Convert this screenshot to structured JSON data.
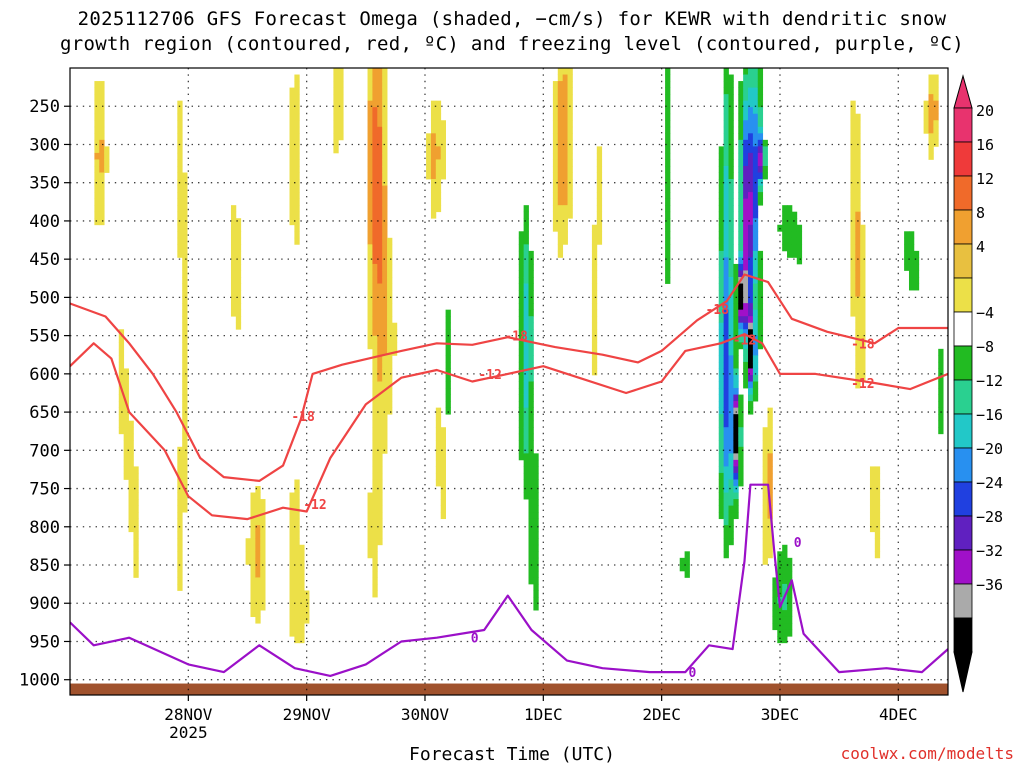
{
  "chart_data": {
    "type": "heatmap",
    "title_line1": "2025112706 GFS Forecast Omega (shaded, −cm/s) for KEWR with dendritic snow",
    "title_line2": "growth region (contoured, red, ºC) and freezing level (contoured, purple, ºC)",
    "xlabel": "Forecast Time (UTC)",
    "credit": "coolwx.com/modelts",
    "x_ticks": [
      {
        "label": "28NOV",
        "sub": "2025",
        "day": 1.0
      },
      {
        "label": "29NOV",
        "sub": "",
        "day": 2.0
      },
      {
        "label": "30NOV",
        "sub": "",
        "day": 3.0
      },
      {
        "label": "1DEC",
        "sub": "",
        "day": 4.0
      },
      {
        "label": "2DEC",
        "sub": "",
        "day": 5.0
      },
      {
        "label": "3DEC",
        "sub": "",
        "day": 6.0
      },
      {
        "label": "4DEC",
        "sub": "",
        "day": 7.0
      }
    ],
    "x_range_days": [
      0.0,
      7.42
    ],
    "y_ticks": [
      250,
      300,
      350,
      400,
      450,
      500,
      550,
      600,
      650,
      700,
      750,
      800,
      850,
      900,
      950,
      1000
    ],
    "y_range_hpa": [
      200,
      1020
    ],
    "colorbar": {
      "labels": [
        "20",
        "16",
        "12",
        "8",
        "4",
        "−4",
        "−8",
        "−12",
        "−16",
        "−20",
        "−24",
        "−28",
        "−32",
        "−36"
      ],
      "colors": [
        "#e8336e",
        "#ef3a3a",
        "#f06a2a",
        "#f0a030",
        "#e8c040",
        "#ece048",
        "#ffffff",
        "#22bb22",
        "#2ad090",
        "#22c8c8",
        "#2890f0",
        "#2040e0",
        "#6020c0",
        "#a010c8",
        "#aaaaaa",
        "#000000"
      ]
    },
    "omega_blobs": [
      {
        "t": 0.25,
        "p": 330,
        "dt": 0.07,
        "dp": 110,
        "v": 6
      },
      {
        "t": 0.5,
        "p": 700,
        "dt": 0.1,
        "dp": 150,
        "v": 5
      },
      {
        "t": 0.95,
        "p": 560,
        "dt": 0.05,
        "dp": 260,
        "v": 7
      },
      {
        "t": 1.4,
        "p": 350,
        "dt": 0.07,
        "dp": 150,
        "v": 6
      },
      {
        "t": 1.6,
        "p": 830,
        "dt": 0.12,
        "dp": 90,
        "v": 6
      },
      {
        "t": 1.9,
        "p": 520,
        "dt": 0.05,
        "dp": 330,
        "v": 5
      },
      {
        "t": 2.0,
        "p": 900,
        "dt": 0.15,
        "dp": 80,
        "v": 5
      },
      {
        "t": 2.28,
        "p": 240,
        "dt": 0.05,
        "dp": 60,
        "v": 6
      },
      {
        "t": 2.6,
        "p": 430,
        "dt": 0.09,
        "dp": 300,
        "v": 14
      },
      {
        "t": 3.08,
        "p": 310,
        "dt": 0.07,
        "dp": 90,
        "v": 12
      },
      {
        "t": 3.15,
        "p": 720,
        "dt": 0.1,
        "dp": 100,
        "v": 6
      },
      {
        "t": 3.6,
        "p": 570,
        "dt": 0.05,
        "dp": 120,
        "v": 5
      },
      {
        "t": 4.15,
        "p": 300,
        "dt": 0.08,
        "dp": 160,
        "v": 10
      },
      {
        "t": 4.45,
        "p": 400,
        "dt": 0.05,
        "dp": 250,
        "v": 5
      },
      {
        "t": 3.85,
        "p": 560,
        "dt": 0.05,
        "dp": 200,
        "v": -12
      },
      {
        "t": 3.92,
        "p": 820,
        "dt": 0.05,
        "dp": 120,
        "v": -10
      },
      {
        "t": 3.2,
        "p": 650,
        "dt": 0.03,
        "dp": 120,
        "v": -6
      },
      {
        "t": 4.6,
        "p": 600,
        "dt": 0.04,
        "dp": 80,
        "v": 5
      },
      {
        "t": 5.05,
        "p": 450,
        "dt": 0.04,
        "dp": 250,
        "v": -6
      },
      {
        "t": 5.2,
        "p": 850,
        "dt": 0.06,
        "dp": 60,
        "v": -8
      },
      {
        "t": 5.55,
        "p": 620,
        "dt": 0.06,
        "dp": 220,
        "v": -20
      },
      {
        "t": 5.55,
        "p": 300,
        "dt": 0.05,
        "dp": 150,
        "v": -12
      },
      {
        "t": 5.63,
        "p": 680,
        "dt": 0.03,
        "dp": 60,
        "v": -40
      },
      {
        "t": 5.72,
        "p": 420,
        "dt": 0.05,
        "dp": 160,
        "v": -28
      },
      {
        "t": 5.68,
        "p": 500,
        "dt": 0.03,
        "dp": 40,
        "v": -40
      },
      {
        "t": 5.76,
        "p": 570,
        "dt": 0.03,
        "dp": 50,
        "v": -40
      },
      {
        "t": 5.8,
        "p": 340,
        "dt": 0.06,
        "dp": 150,
        "v": -20
      },
      {
        "t": 5.85,
        "p": 320,
        "dt": 0.02,
        "dp": 30,
        "v": -40
      },
      {
        "t": 5.9,
        "p": 730,
        "dt": 0.04,
        "dp": 120,
        "v": 10
      },
      {
        "t": 5.85,
        "p": 400,
        "dt": 0.03,
        "dp": 60,
        "v": 14
      },
      {
        "t": 6.1,
        "p": 420,
        "dt": 0.15,
        "dp": 50,
        "v": -6
      },
      {
        "t": 6.0,
        "p": 900,
        "dt": 0.2,
        "dp": 60,
        "v": -6
      },
      {
        "t": 6.65,
        "p": 380,
        "dt": 0.06,
        "dp": 200,
        "v": 9
      },
      {
        "t": 6.8,
        "p": 760,
        "dt": 0.05,
        "dp": 80,
        "v": 6
      },
      {
        "t": 7.3,
        "p": 260,
        "dt": 0.05,
        "dp": 60,
        "v": 12
      },
      {
        "t": 7.35,
        "p": 600,
        "dt": 0.04,
        "dp": 120,
        "v": -8
      },
      {
        "t": 7.1,
        "p": 450,
        "dt": 0.08,
        "dp": 60,
        "v": -6
      }
    ],
    "contours": [
      {
        "name": "-18",
        "color": "#ef4444",
        "points": [
          [
            0.0,
            508
          ],
          [
            0.3,
            525
          ],
          [
            0.5,
            560
          ],
          [
            0.7,
            600
          ],
          [
            0.9,
            650
          ],
          [
            1.1,
            710
          ],
          [
            1.3,
            735
          ],
          [
            1.6,
            740
          ],
          [
            1.8,
            720
          ],
          [
            1.95,
            660
          ],
          [
            2.05,
            600
          ],
          [
            2.3,
            588
          ],
          [
            2.8,
            570
          ],
          [
            3.1,
            560
          ],
          [
            3.4,
            562
          ],
          [
            3.7,
            552
          ],
          [
            4.1,
            565
          ],
          [
            4.5,
            575
          ],
          [
            4.8,
            585
          ],
          [
            5.0,
            570
          ],
          [
            5.3,
            530
          ],
          [
            5.55,
            505
          ],
          [
            5.7,
            470
          ],
          [
            5.9,
            480
          ],
          [
            6.1,
            528
          ],
          [
            6.4,
            545
          ],
          [
            6.8,
            560
          ],
          [
            7.0,
            540
          ],
          [
            7.42,
            540
          ]
        ]
      },
      {
        "name": "-12",
        "color": "#ef4444",
        "points": [
          [
            0.0,
            590
          ],
          [
            0.2,
            560
          ],
          [
            0.35,
            580
          ],
          [
            0.5,
            650
          ],
          [
            0.8,
            700
          ],
          [
            1.0,
            760
          ],
          [
            1.2,
            785
          ],
          [
            1.5,
            790
          ],
          [
            1.8,
            775
          ],
          [
            2.0,
            780
          ],
          [
            2.2,
            710
          ],
          [
            2.5,
            640
          ],
          [
            2.8,
            605
          ],
          [
            3.1,
            595
          ],
          [
            3.4,
            610
          ],
          [
            3.7,
            600
          ],
          [
            4.0,
            590
          ],
          [
            4.3,
            605
          ],
          [
            4.7,
            625
          ],
          [
            5.0,
            610
          ],
          [
            5.2,
            570
          ],
          [
            5.5,
            560
          ],
          [
            5.7,
            548
          ],
          [
            5.85,
            560
          ],
          [
            6.0,
            600
          ],
          [
            6.3,
            600
          ],
          [
            6.8,
            612
          ],
          [
            7.1,
            620
          ],
          [
            7.42,
            600
          ]
        ]
      },
      {
        "name": "0",
        "color": "#9b10c8",
        "points": [
          [
            0.0,
            925
          ],
          [
            0.2,
            955
          ],
          [
            0.5,
            945
          ],
          [
            1.0,
            980
          ],
          [
            1.3,
            990
          ],
          [
            1.6,
            955
          ],
          [
            1.9,
            985
          ],
          [
            2.2,
            995
          ],
          [
            2.5,
            980
          ],
          [
            2.8,
            950
          ],
          [
            3.1,
            945
          ],
          [
            3.5,
            935
          ],
          [
            3.7,
            890
          ],
          [
            3.9,
            935
          ],
          [
            4.2,
            975
          ],
          [
            4.5,
            985
          ],
          [
            4.9,
            990
          ],
          [
            5.2,
            990
          ],
          [
            5.4,
            955
          ],
          [
            5.6,
            960
          ],
          [
            5.7,
            845
          ],
          [
            5.75,
            745
          ],
          [
            5.9,
            745
          ],
          [
            5.95,
            830
          ],
          [
            6.0,
            905
          ],
          [
            6.1,
            870
          ],
          [
            6.2,
            940
          ],
          [
            6.5,
            990
          ],
          [
            6.9,
            985
          ],
          [
            7.2,
            990
          ],
          [
            7.42,
            960
          ]
        ]
      }
    ],
    "contour_labels": [
      {
        "text": "-18",
        "t": 1.97,
        "p": 655
      },
      {
        "text": "-12",
        "t": 2.07,
        "p": 770
      },
      {
        "text": "-18",
        "t": 3.77,
        "p": 550
      },
      {
        "text": "-12",
        "t": 3.55,
        "p": 600
      },
      {
        "text": "-18",
        "t": 5.47,
        "p": 515
      },
      {
        "text": "-12",
        "t": 5.7,
        "p": 555
      },
      {
        "text": "-18",
        "t": 6.7,
        "p": 560
      },
      {
        "text": "-12",
        "t": 6.7,
        "p": 612
      },
      {
        "text": "0",
        "t": 3.42,
        "p": 945
      },
      {
        "text": "0",
        "t": 5.26,
        "p": 990
      },
      {
        "text": "0",
        "t": 6.15,
        "p": 820
      }
    ]
  }
}
